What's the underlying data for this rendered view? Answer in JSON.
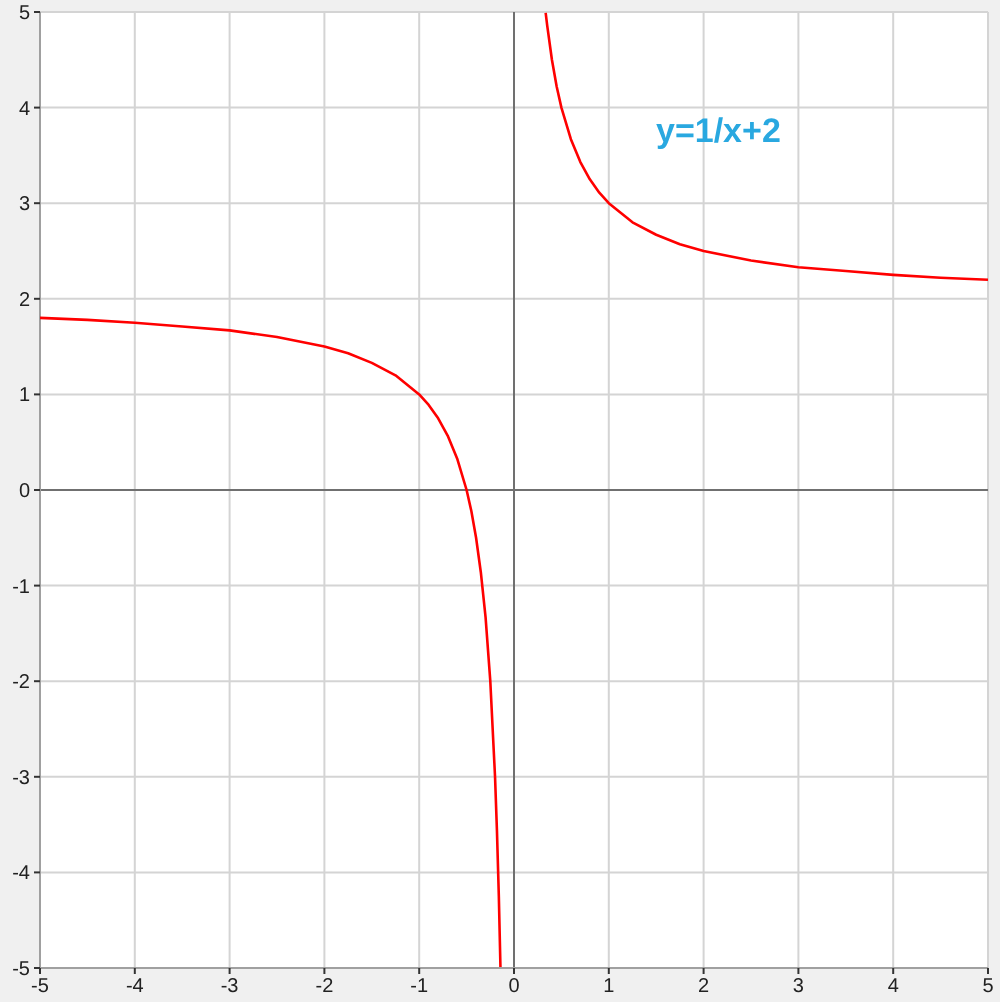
{
  "chart_data": {
    "type": "line",
    "annotations": [
      "y=1/x+2"
    ],
    "series": [
      {
        "color": "#ff0000",
        "x": [
          -5,
          -4.5,
          -4,
          -3.5,
          -3,
          -2.5,
          -2,
          -1.75,
          -1.5,
          -1.25,
          -1,
          -0.9,
          -0.8,
          -0.7,
          -0.6,
          -0.5,
          -0.45,
          -0.4,
          -0.35,
          -0.3,
          -0.25,
          -0.2,
          -0.18,
          -0.16,
          -0.143
        ],
        "values": [
          1.8,
          1.78,
          1.75,
          1.71,
          1.67,
          1.6,
          1.5,
          1.43,
          1.33,
          1.2,
          1,
          0.89,
          0.75,
          0.57,
          0.33,
          0,
          -0.22,
          -0.5,
          -0.86,
          -1.33,
          -2,
          -3,
          -3.56,
          -4.25,
          -4.99
        ]
      },
      {
        "color": "#ff0000",
        "x": [
          0.334,
          0.35,
          0.4,
          0.45,
          0.5,
          0.6,
          0.7,
          0.8,
          0.9,
          1,
          1.25,
          1.5,
          1.75,
          2,
          2.5,
          3,
          3.5,
          4,
          4.5,
          5
        ],
        "values": [
          4.99,
          4.86,
          4.5,
          4.22,
          4,
          3.67,
          3.43,
          3.25,
          3.11,
          3,
          2.8,
          2.67,
          2.57,
          2.5,
          2.4,
          2.33,
          2.29,
          2.25,
          2.22,
          2.2
        ]
      }
    ],
    "xlim": [
      -5,
      5
    ],
    "xticks": [
      -5,
      -4,
      -3,
      -2,
      -1,
      0,
      1,
      2,
      3,
      4,
      5
    ],
    "ylim": [
      -5,
      5
    ],
    "yticks": [
      -5,
      -4,
      -3,
      -2,
      -1,
      0,
      1,
      2,
      3,
      4,
      5
    ],
    "grid": true,
    "marker": "none",
    "line_style": "solid"
  }
}
